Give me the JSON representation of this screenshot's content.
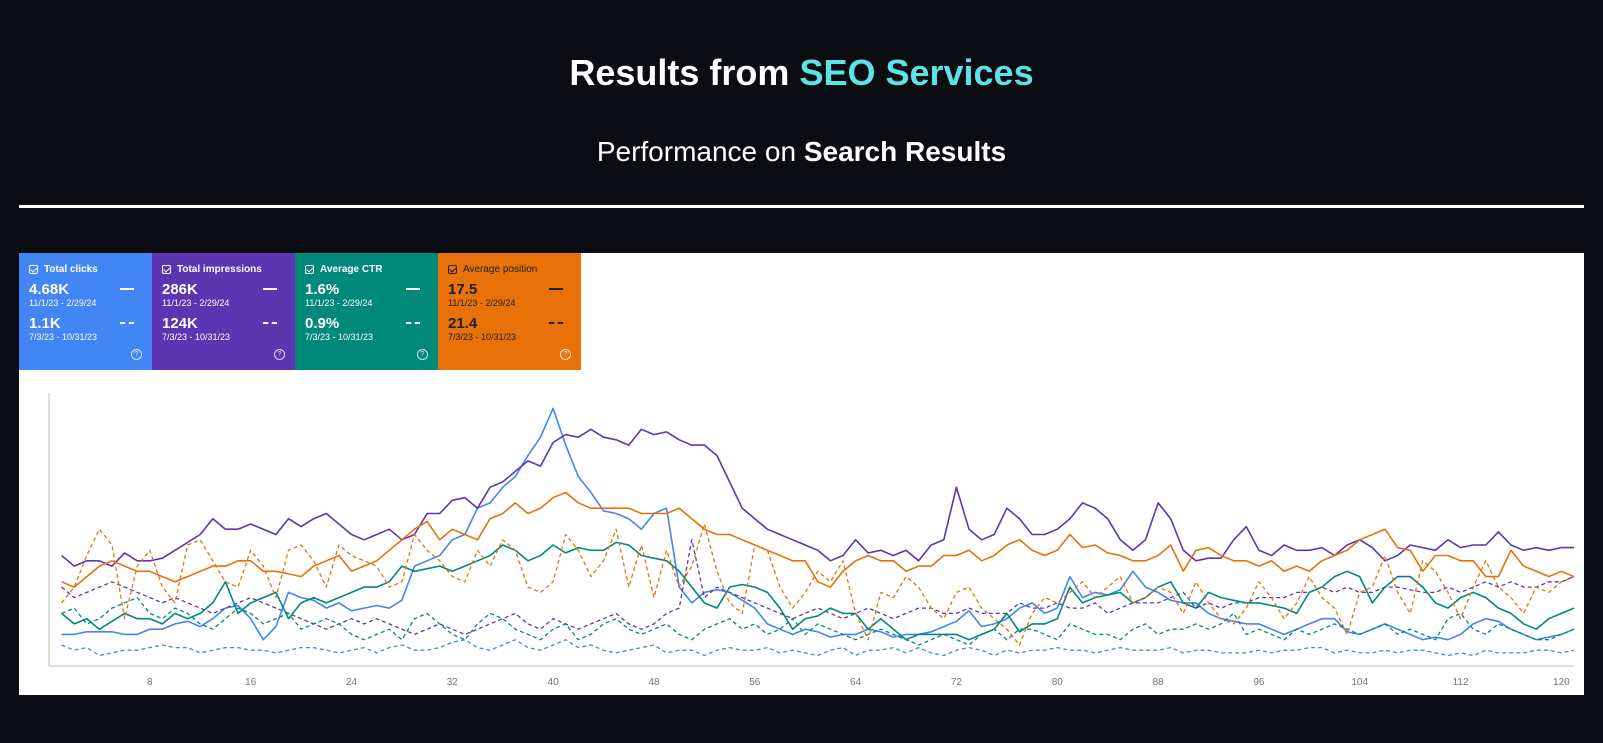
{
  "header": {
    "title_main": "Results from ",
    "title_accent": "SEO Services",
    "subtitle_main": "Performance on ",
    "subtitle_bold": "Search Results"
  },
  "colors": {
    "clicks": "#4285f4",
    "impressions": "#5e35b1",
    "ctr": "#00897b",
    "position": "#e8710a"
  },
  "cards": [
    {
      "label": "Total clicks",
      "current_value": "4.68K",
      "current_range": "11/1/23 - 2/29/24",
      "previous_value": "1.1K",
      "previous_range": "7/3/23 - 10/31/23",
      "icon": "help-icon"
    },
    {
      "label": "Total impressions",
      "current_value": "286K",
      "current_range": "11/1/23 - 2/29/24",
      "previous_value": "124K",
      "previous_range": "7/3/23 - 10/31/23",
      "icon": "help-icon"
    },
    {
      "label": "Average CTR",
      "current_value": "1.6%",
      "current_range": "11/1/23 - 2/29/24",
      "previous_value": "0.9%",
      "previous_range": "7/3/23 - 10/31/23",
      "icon": "help-icon"
    },
    {
      "label": "Average position",
      "current_value": "17.5",
      "current_range": "11/1/23 - 2/29/24",
      "previous_value": "21.4",
      "previous_range": "7/3/23 - 10/31/23",
      "icon": "help-icon"
    }
  ],
  "chart_data": {
    "type": "line",
    "xlim": [
      0,
      121
    ],
    "ylim": [
      0,
      100
    ],
    "x_ticks": [
      "8",
      "16",
      "24",
      "32",
      "40",
      "48",
      "56",
      "64",
      "72",
      "80",
      "88",
      "96",
      "104",
      "112",
      "120"
    ],
    "grid": false,
    "series": [
      {
        "name": "Total clicks",
        "style": "solid",
        "color": "#4285f4",
        "values": [
          12,
          12,
          13,
          13,
          13,
          12,
          12,
          14,
          14,
          16,
          17,
          15,
          18,
          22,
          23,
          18,
          10,
          15,
          28,
          26,
          25,
          22,
          24,
          21,
          22,
          23,
          22,
          25,
          38,
          40,
          42,
          48,
          50,
          60,
          62,
          68,
          72,
          80,
          87,
          98,
          84,
          72,
          66,
          59,
          58,
          56,
          52,
          58,
          60,
          30,
          24,
          28,
          29,
          28,
          25,
          22,
          16,
          14,
          12,
          14,
          13,
          11,
          12,
          12,
          14,
          13,
          11,
          12,
          12,
          13,
          15,
          17,
          21,
          15,
          16,
          18,
          22,
          24,
          20,
          22,
          34,
          26,
          28,
          27,
          29,
          36,
          30,
          28,
          25,
          24,
          24,
          20,
          18,
          17,
          16,
          16,
          14,
          12,
          14,
          16,
          18,
          18,
          13,
          12,
          14,
          16,
          14,
          12,
          10,
          11,
          10,
          12,
          16,
          18,
          17,
          14,
          12,
          10,
          11,
          12,
          14
        ]
      },
      {
        "name": "Total clicks",
        "style": "dashed",
        "color": "#4285f4",
        "values": [
          8,
          6,
          7,
          4,
          5,
          6,
          6,
          7,
          8,
          7,
          7,
          5,
          6,
          7,
          7,
          6,
          6,
          5,
          6,
          7,
          7,
          6,
          5,
          6,
          7,
          5,
          7,
          8,
          6,
          6,
          7,
          9,
          10,
          7,
          6,
          8,
          10,
          7,
          6,
          8,
          10,
          7,
          8,
          6,
          5,
          6,
          7,
          8,
          5,
          6,
          6,
          4,
          6,
          7,
          6,
          6,
          7,
          5,
          6,
          5,
          4,
          6,
          7,
          4,
          6,
          6,
          7,
          5,
          7,
          5,
          4,
          6,
          7,
          6,
          4,
          6,
          5,
          6,
          6,
          7,
          6,
          6,
          5,
          6,
          7,
          6,
          6,
          6,
          7,
          5,
          6,
          6,
          5,
          5,
          5,
          6,
          5,
          6,
          6,
          7,
          7,
          5,
          6,
          5,
          5,
          6,
          5,
          6,
          6,
          5,
          4,
          5,
          4,
          6,
          5,
          5,
          5,
          6,
          6,
          5,
          6
        ]
      },
      {
        "name": "Total impressions",
        "style": "solid",
        "color": "#5e35b1",
        "values": [
          42,
          38,
          40,
          40,
          38,
          43,
          40,
          40,
          41,
          44,
          47,
          50,
          56,
          52,
          52,
          54,
          52,
          50,
          56,
          53,
          56,
          58,
          54,
          50,
          48,
          50,
          52,
          48,
          50,
          58,
          58,
          63,
          64,
          60,
          68,
          70,
          74,
          78,
          76,
          85,
          88,
          87,
          90,
          87,
          86,
          84,
          90,
          88,
          89,
          86,
          84,
          84,
          80,
          70,
          60,
          56,
          52,
          50,
          48,
          46,
          44,
          40,
          42,
          48,
          43,
          44,
          42,
          44,
          40,
          46,
          48,
          68,
          52,
          48,
          50,
          60,
          56,
          50,
          50,
          52,
          56,
          62,
          60,
          56,
          48,
          44,
          48,
          62,
          56,
          44,
          40,
          41,
          41,
          48,
          53,
          44,
          42,
          46,
          44,
          44,
          45,
          42,
          46,
          48,
          45,
          40,
          42,
          46,
          45,
          44,
          48,
          45,
          46,
          46,
          51,
          46,
          44,
          45,
          44,
          45,
          45
        ]
      },
      {
        "name": "Total impressions",
        "style": "dashed",
        "color": "#5e35b1",
        "values": [
          30,
          26,
          28,
          30,
          32,
          30,
          28,
          26,
          24,
          26,
          24,
          22,
          20,
          22,
          24,
          26,
          24,
          22,
          20,
          18,
          16,
          14,
          16,
          18,
          16,
          18,
          16,
          14,
          12,
          14,
          16,
          14,
          12,
          14,
          16,
          18,
          20,
          16,
          14,
          18,
          16,
          14,
          16,
          18,
          20,
          16,
          14,
          16,
          20,
          22,
          48,
          26,
          30,
          28,
          26,
          24,
          22,
          20,
          18,
          20,
          22,
          20,
          18,
          20,
          22,
          20,
          18,
          20,
          22,
          22,
          20,
          20,
          22,
          20,
          20,
          20,
          24,
          22,
          22,
          24,
          22,
          22,
          24,
          20,
          22,
          24,
          24,
          24,
          26,
          28,
          22,
          24,
          22,
          24,
          24,
          26,
          26,
          26,
          28,
          28,
          30,
          28,
          30,
          28,
          28,
          30,
          30,
          29,
          28,
          28,
          30,
          28,
          30,
          32,
          30,
          32,
          30,
          30,
          32,
          32,
          34
        ]
      },
      {
        "name": "Average CTR",
        "style": "solid",
        "color": "#00897b",
        "values": [
          20,
          16,
          18,
          14,
          17,
          20,
          18,
          18,
          16,
          20,
          18,
          20,
          24,
          32,
          20,
          24,
          26,
          28,
          18,
          24,
          26,
          24,
          26,
          28,
          30,
          30,
          32,
          38,
          36,
          37,
          38,
          36,
          38,
          40,
          42,
          46,
          44,
          40,
          42,
          46,
          43,
          45,
          44,
          44,
          47,
          46,
          42,
          41,
          40,
          36,
          30,
          24,
          22,
          30,
          31,
          30,
          28,
          22,
          14,
          18,
          19,
          22,
          20,
          20,
          14,
          18,
          14,
          10,
          12,
          12,
          12,
          12,
          10,
          12,
          14,
          20,
          13,
          16,
          16,
          18,
          30,
          24,
          26,
          27,
          28,
          24,
          26,
          30,
          32,
          24,
          22,
          28,
          26,
          25,
          24,
          24,
          23,
          22,
          20,
          28,
          30,
          34,
          36,
          34,
          24,
          30,
          34,
          34,
          30,
          24,
          22,
          26,
          28,
          26,
          22,
          20,
          16,
          14,
          18,
          20,
          22
        ]
      },
      {
        "name": "Average CTR",
        "style": "dashed",
        "color": "#00897b",
        "values": [
          20,
          22,
          16,
          18,
          22,
          24,
          26,
          20,
          18,
          22,
          20,
          16,
          14,
          18,
          22,
          20,
          16,
          18,
          20,
          14,
          16,
          18,
          16,
          12,
          10,
          12,
          14,
          10,
          18,
          20,
          16,
          12,
          10,
          16,
          20,
          18,
          14,
          12,
          10,
          14,
          16,
          10,
          12,
          16,
          18,
          14,
          12,
          14,
          16,
          12,
          10,
          14,
          16,
          18,
          14,
          16,
          12,
          14,
          18,
          12,
          16,
          14,
          12,
          10,
          12,
          14,
          12,
          10,
          8,
          10,
          12,
          10,
          8,
          12,
          14,
          10,
          14,
          14,
          12,
          10,
          16,
          14,
          12,
          12,
          10,
          14,
          16,
          12,
          14,
          14,
          16,
          14,
          16,
          20,
          12,
          14,
          12,
          10,
          14,
          12,
          14,
          16,
          14,
          12,
          14,
          16,
          12,
          14,
          12,
          10,
          18,
          20,
          14,
          12,
          16,
          14,
          12,
          10,
          10,
          12,
          14
        ]
      },
      {
        "name": "Average position",
        "style": "solid",
        "color": "#e8710a",
        "values": [
          32,
          30,
          34,
          38,
          40,
          38,
          36,
          36,
          34,
          32,
          34,
          36,
          38,
          38,
          40,
          40,
          36,
          36,
          35,
          34,
          38,
          40,
          42,
          36,
          38,
          40,
          44,
          48,
          52,
          55,
          48,
          52,
          50,
          48,
          56,
          58,
          62,
          58,
          60,
          64,
          66,
          62,
          60,
          60,
          60,
          60,
          58,
          58,
          58,
          60,
          56,
          52,
          50,
          50,
          48,
          46,
          44,
          42,
          40,
          40,
          32,
          30,
          36,
          40,
          42,
          40,
          40,
          36,
          38,
          38,
          42,
          42,
          44,
          40,
          42,
          46,
          48,
          44,
          42,
          44,
          50,
          45,
          46,
          43,
          42,
          40,
          40,
          42,
          46,
          36,
          44,
          45,
          42,
          40,
          40,
          38,
          40,
          36,
          38,
          36,
          40,
          42,
          44,
          48,
          50,
          52,
          45,
          44,
          36,
          42,
          42,
          40,
          40,
          34,
          34,
          44,
          38,
          36,
          34,
          36,
          34
        ]
      },
      {
        "name": "Average position",
        "style": "dashed",
        "color": "#e8710a",
        "values": [
          24,
          30,
          42,
          52,
          46,
          18,
          38,
          44,
          30,
          24,
          46,
          48,
          40,
          32,
          30,
          44,
          38,
          26,
          44,
          46,
          40,
          30,
          46,
          42,
          40,
          38,
          30,
          32,
          50,
          44,
          40,
          34,
          32,
          44,
          38,
          48,
          44,
          30,
          28,
          32,
          50,
          44,
          34,
          40,
          52,
          30,
          46,
          26,
          44,
          30,
          38,
          54,
          36,
          24,
          20,
          46,
          44,
          30,
          22,
          28,
          36,
          32,
          40,
          20,
          10,
          28,
          26,
          34,
          30,
          22,
          18,
          28,
          30,
          22,
          18,
          14,
          8,
          20,
          26,
          24,
          28,
          32,
          26,
          30,
          34,
          24,
          26,
          30,
          28,
          20,
          32,
          24,
          18,
          16,
          22,
          32,
          26,
          18,
          24,
          34,
          26,
          22,
          12,
          28,
          30,
          42,
          28,
          20,
          40,
          36,
          28,
          18,
          30,
          40,
          30,
          26,
          20,
          30,
          28,
          32,
          34
        ]
      }
    ]
  }
}
